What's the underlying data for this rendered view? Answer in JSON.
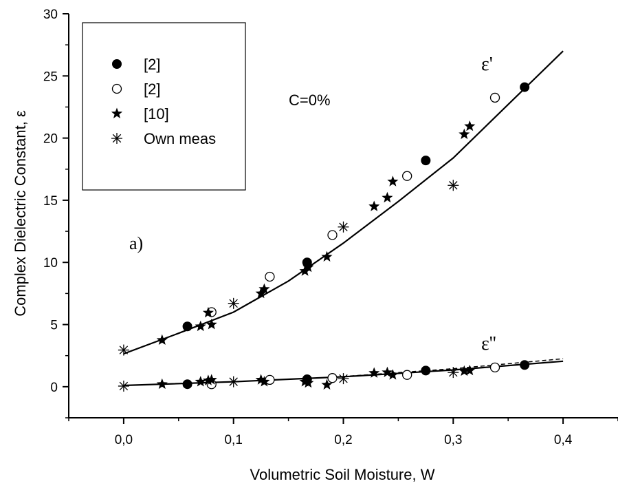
{
  "chart_data": {
    "type": "scatter",
    "xlabel": "Volumetric Soil Moisture, W",
    "ylabel": "Complex Dielectric Constant, ε",
    "xlim": [
      -0.05,
      0.45
    ],
    "ylim": [
      -2.5,
      30
    ],
    "x_ticks": [
      "0,0",
      "0,1",
      "0,2",
      "0,3",
      "0,4"
    ],
    "x_tick_values": [
      0.0,
      0.1,
      0.2,
      0.3,
      0.4
    ],
    "y_ticks": [
      "0",
      "5",
      "10",
      "15",
      "20",
      "25",
      "30"
    ],
    "y_tick_values": [
      0,
      5,
      10,
      15,
      20,
      25,
      30
    ],
    "grid": false,
    "legend_placement": "top-left",
    "annotations": {
      "condition": "C=0%",
      "panel": "a)",
      "eps_real": "ε'",
      "eps_imag": "ε''"
    },
    "series": [
      {
        "name": "[2]",
        "marker": "filled-circle",
        "eps_real": [
          [
            0.058,
            4.85
          ],
          [
            0.167,
            10.0
          ],
          [
            0.275,
            18.2
          ],
          [
            0.365,
            24.1
          ]
        ],
        "eps_imag": [
          [
            0.058,
            0.2
          ],
          [
            0.167,
            0.6
          ],
          [
            0.275,
            1.3
          ],
          [
            0.365,
            1.75
          ]
        ]
      },
      {
        "name": "[2]",
        "marker": "open-circle",
        "eps_real": [
          [
            0.08,
            6.0
          ],
          [
            0.133,
            8.85
          ],
          [
            0.19,
            12.2
          ],
          [
            0.258,
            16.95
          ],
          [
            0.338,
            23.25
          ]
        ],
        "eps_imag": [
          [
            0.08,
            0.2
          ],
          [
            0.133,
            0.55
          ],
          [
            0.19,
            0.7
          ],
          [
            0.258,
            0.95
          ],
          [
            0.338,
            1.55
          ]
        ]
      },
      {
        "name": "[10]",
        "marker": "star",
        "eps_real": [
          [
            0.035,
            3.75
          ],
          [
            0.07,
            4.85
          ],
          [
            0.077,
            5.95
          ],
          [
            0.08,
            5.0
          ],
          [
            0.125,
            7.5
          ],
          [
            0.128,
            7.85
          ],
          [
            0.165,
            9.3
          ],
          [
            0.168,
            9.6
          ],
          [
            0.185,
            10.45
          ],
          [
            0.228,
            14.5
          ],
          [
            0.24,
            15.2
          ],
          [
            0.245,
            16.5
          ],
          [
            0.31,
            20.3
          ],
          [
            0.315,
            20.95
          ]
        ],
        "eps_imag": [
          [
            0.035,
            0.2
          ],
          [
            0.07,
            0.4
          ],
          [
            0.077,
            0.5
          ],
          [
            0.08,
            0.55
          ],
          [
            0.125,
            0.55
          ],
          [
            0.128,
            0.4
          ],
          [
            0.165,
            0.4
          ],
          [
            0.168,
            0.3
          ],
          [
            0.185,
            0.15
          ],
          [
            0.228,
            1.1
          ],
          [
            0.24,
            1.15
          ],
          [
            0.245,
            0.95
          ],
          [
            0.31,
            1.25
          ],
          [
            0.315,
            1.3
          ]
        ]
      },
      {
        "name": "Own meas",
        "marker": "asterisk",
        "eps_real": [
          [
            0.0,
            2.95
          ],
          [
            0.1,
            6.7
          ],
          [
            0.2,
            12.85
          ],
          [
            0.3,
            16.2
          ]
        ],
        "eps_imag": [
          [
            0.0,
            0.05
          ],
          [
            0.1,
            0.4
          ],
          [
            0.2,
            0.65
          ],
          [
            0.3,
            1.15
          ]
        ]
      }
    ],
    "model_curves": [
      {
        "role": "eps_real-fit",
        "style": "solid",
        "points": [
          [
            0.0,
            2.65
          ],
          [
            0.05,
            4.3
          ],
          [
            0.1,
            6.0
          ],
          [
            0.15,
            8.5
          ],
          [
            0.2,
            11.55
          ],
          [
            0.25,
            14.9
          ],
          [
            0.3,
            18.4
          ],
          [
            0.35,
            22.7
          ],
          [
            0.4,
            27.0
          ]
        ]
      },
      {
        "role": "eps_imag-fit",
        "style": "solid",
        "points": [
          [
            0.0,
            0.1
          ],
          [
            0.1,
            0.4
          ],
          [
            0.2,
            0.8
          ],
          [
            0.3,
            1.35
          ],
          [
            0.4,
            2.05
          ]
        ]
      },
      {
        "role": "eps_imag-fit-alt",
        "style": "dashed",
        "points": [
          [
            0.2,
            0.82
          ],
          [
            0.3,
            1.45
          ],
          [
            0.4,
            2.25
          ]
        ]
      }
    ]
  }
}
